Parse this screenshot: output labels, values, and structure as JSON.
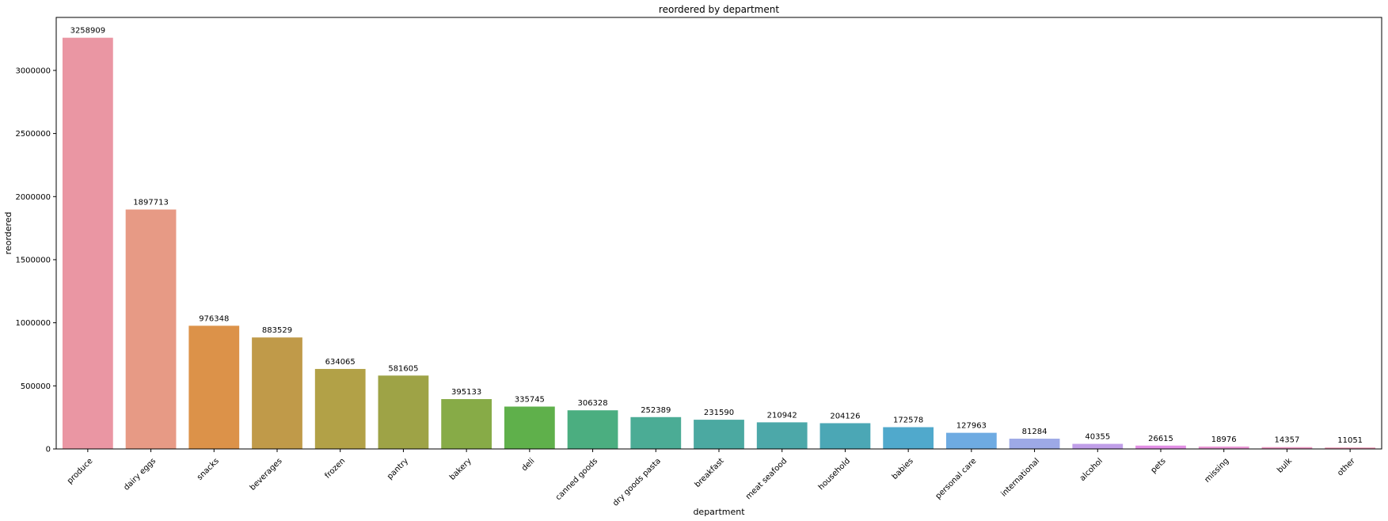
{
  "chart_data": {
    "type": "bar",
    "title": "reordered by department",
    "xlabel": "department",
    "ylabel": "reordered",
    "ylim": [
      0,
      3420000
    ],
    "yticks": [
      0,
      500000,
      1000000,
      1500000,
      2000000,
      2500000,
      3000000
    ],
    "ytick_labels": [
      "0",
      "500000",
      "1000000",
      "1500000",
      "2000000",
      "2500000",
      "3000000"
    ],
    "grid": false,
    "categories": [
      "produce",
      "dairy eggs",
      "snacks",
      "beverages",
      "frozen",
      "pantry",
      "bakery",
      "deli",
      "canned goods",
      "dry goods pasta",
      "breakfast",
      "meat seafood",
      "household",
      "babies",
      "personal care",
      "international",
      "alcohol",
      "pets",
      "missing",
      "bulk",
      "other"
    ],
    "values": [
      3258909,
      1897713,
      976348,
      883529,
      634065,
      581605,
      395133,
      335745,
      306328,
      252389,
      231590,
      210942,
      204126,
      172578,
      127963,
      81284,
      40355,
      26615,
      18976,
      14357,
      11051
    ],
    "value_labels": [
      "3258909",
      "1897713",
      "976348",
      "883529",
      "634065",
      "581605",
      "395133",
      "335745",
      "306328",
      "252389",
      "231590",
      "210942",
      "204126",
      "172578",
      "127963",
      "81284",
      "40355",
      "26615",
      "18976",
      "14357",
      "11051"
    ],
    "colors": [
      "#ea96a3",
      "#e79a85",
      "#dc9249",
      "#c09a49",
      "#b2a147",
      "#9ea346",
      "#87ab47",
      "#5fb04b",
      "#4bae80",
      "#4bac95",
      "#4ba9a1",
      "#4ca8a9",
      "#4ba7b5",
      "#50a9cc",
      "#6eabe2",
      "#9da9e6",
      "#c09ee8",
      "#e28fe5",
      "#e996d4",
      "#ea95bf",
      "#eb93af"
    ]
  }
}
